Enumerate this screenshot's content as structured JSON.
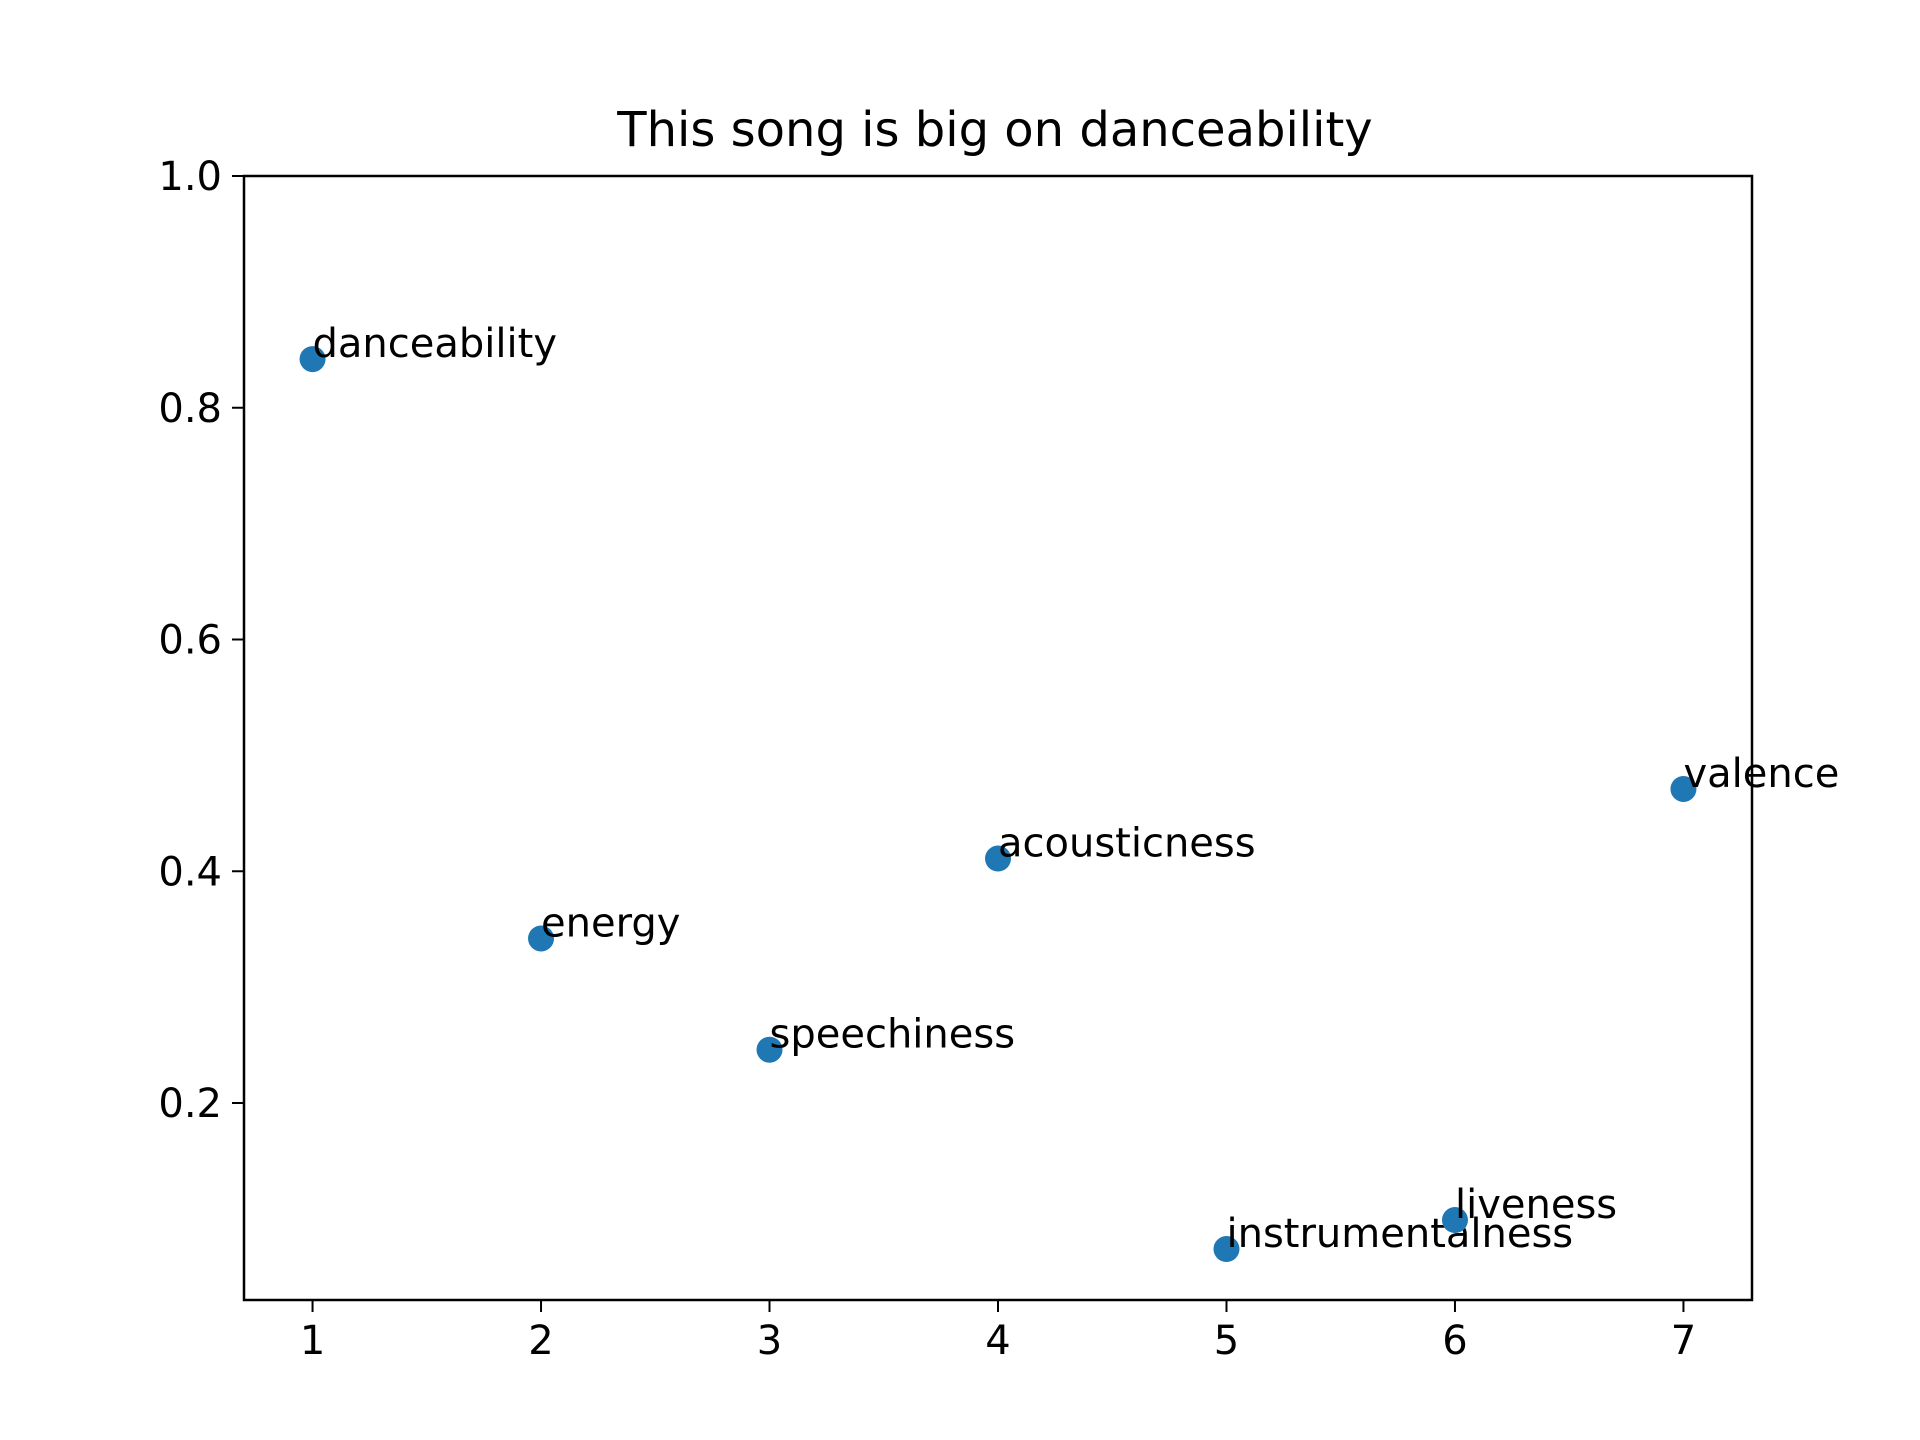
{
  "chart_data": {
    "type": "scatter",
    "title": "This song is big on danceability",
    "xlabel": "",
    "ylabel": "",
    "xlim": [
      0.7,
      7.3
    ],
    "ylim": [
      0.03,
      1.0
    ],
    "x_ticks": [
      1,
      2,
      3,
      4,
      5,
      6,
      7
    ],
    "x_tick_labels": [
      "1",
      "2",
      "3",
      "4",
      "5",
      "6",
      "7"
    ],
    "y_ticks": [
      0.2,
      0.4,
      0.6,
      0.8,
      1.0
    ],
    "y_tick_labels": [
      "0.2",
      "0.4",
      "0.6",
      "0.8",
      "1.0"
    ],
    "grid": false,
    "marker_color": "#1f77b4",
    "points": [
      {
        "x": 1,
        "y": 0.842,
        "label": "danceability"
      },
      {
        "x": 2,
        "y": 0.342,
        "label": "energy"
      },
      {
        "x": 3,
        "y": 0.246,
        "label": "speechiness"
      },
      {
        "x": 4,
        "y": 0.411,
        "label": "acousticness"
      },
      {
        "x": 5,
        "y": 0.074,
        "label": "instrumentalness"
      },
      {
        "x": 6,
        "y": 0.099,
        "label": "liveness"
      },
      {
        "x": 7,
        "y": 0.471,
        "label": "valence"
      }
    ]
  }
}
